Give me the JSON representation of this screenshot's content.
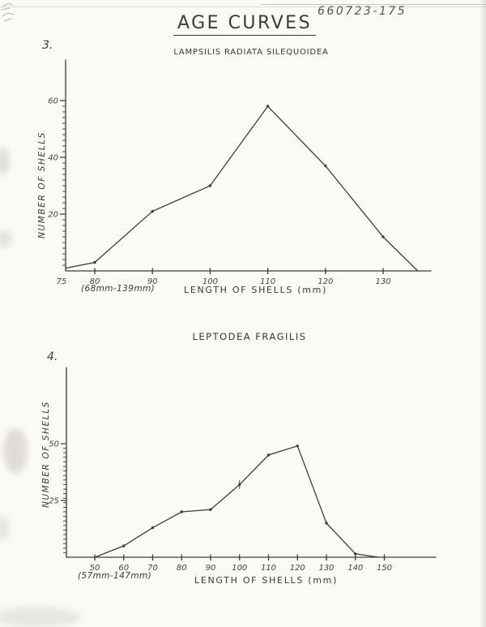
{
  "scan": {
    "header_code": "660723-175"
  },
  "title": "AGE CURVES",
  "chart_data": [
    {
      "type": "line",
      "number": "3.",
      "title": "LAMPSILIS RADIATA SILEQUOIDEA",
      "xlabel": "LENGTH OF SHELLS (mm)",
      "ylabel": "NUMBER OF SHELLS",
      "range_note": "(68mm-139mm)",
      "x": [
        75,
        80,
        90,
        100,
        110,
        120,
        130,
        136
      ],
      "y": [
        1,
        3,
        21,
        30,
        58,
        37,
        12,
        0
      ],
      "x_tick_values": [
        80,
        90,
        100,
        110,
        120,
        130
      ],
      "x_tick_labels": [
        "80",
        "90",
        "100",
        "110",
        "120",
        "130"
      ],
      "origin_label": "75",
      "y_tick_values": [
        20,
        40,
        60
      ],
      "y_tick_labels": [
        "20",
        "40",
        "60"
      ],
      "xlim": [
        75,
        138
      ],
      "ylim": [
        0,
        65
      ],
      "grid": false,
      "legend": null
    },
    {
      "type": "line",
      "number": "4.",
      "title": "LEPTODEA FRAGILIS",
      "xlabel": "LENGTH OF SHELLS (mm)",
      "ylabel": "NUMBER OF SHELLS",
      "range_note": "(57mm-147mm)",
      "x": [
        50,
        60,
        70,
        80,
        90,
        100,
        110,
        120,
        130,
        140,
        148
      ],
      "y": [
        0,
        5,
        13,
        20,
        21,
        32,
        45,
        49,
        15,
        1.5,
        0
      ],
      "x_tick_values": [
        50,
        60,
        70,
        80,
        90,
        100,
        110,
        120,
        130,
        140,
        150
      ],
      "x_tick_labels": [
        "50",
        "60",
        "70",
        "80",
        "90",
        "100",
        "110",
        "120",
        "130",
        "140",
        "150"
      ],
      "origin_label": null,
      "y_tick_values": [
        25,
        50
      ],
      "y_tick_labels": [
        "25",
        "50"
      ],
      "xlim": [
        45,
        155
      ],
      "ylim": [
        0,
        55
      ],
      "grid": false,
      "legend": null
    }
  ]
}
